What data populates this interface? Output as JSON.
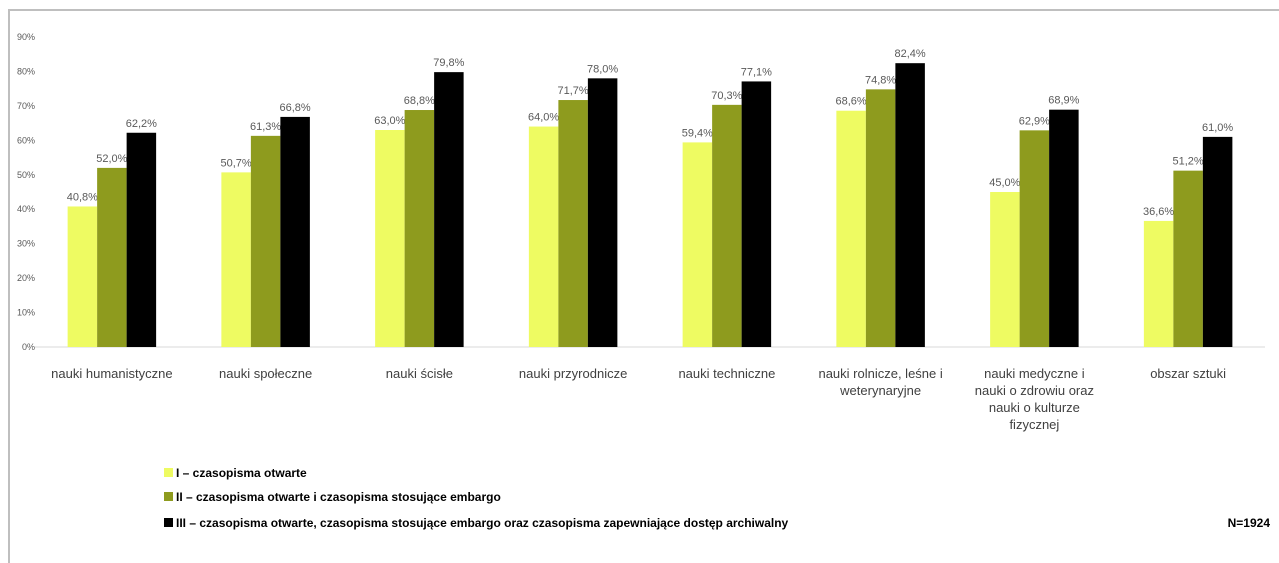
{
  "chart_data": {
    "type": "bar",
    "categories": [
      [
        "nauki humanistyczne"
      ],
      [
        "nauki społeczne"
      ],
      [
        "nauki ścisłe"
      ],
      [
        "nauki przyrodnicze"
      ],
      [
        "nauki techniczne"
      ],
      [
        "nauki rolnicze, leśne i",
        "weterynaryjne"
      ],
      [
        "nauki medyczne i",
        "nauki o zdrowiu oraz",
        "nauki o kulturze",
        "fizycznej"
      ],
      [
        "obszar sztuki"
      ]
    ],
    "series": [
      {
        "name": "I – czasopisma otwarte",
        "color": "#eefb62",
        "values": [
          40.8,
          50.7,
          63.0,
          64.0,
          59.4,
          68.6,
          45.0,
          36.6
        ],
        "labels": [
          "40,8%",
          "50,7%",
          "63,0%",
          "64,0%",
          "59,4%",
          "68,6%",
          "45,0%",
          "36,6%"
        ]
      },
      {
        "name": "II – czasopisma otwarte i czasopisma stosujące embargo",
        "color": "#8e9b1e",
        "values": [
          52.0,
          61.3,
          68.8,
          71.7,
          70.3,
          74.8,
          62.9,
          51.2
        ],
        "labels": [
          "52,0%",
          "61,3%",
          "68,8%",
          "71,7%",
          "70,3%",
          "74,8%",
          "62,9%",
          "51,2%"
        ]
      },
      {
        "name": "III – czasopisma otwarte, czasopisma stosujące embargo oraz czasopisma zapewniające dostęp archiwalny",
        "color": "#000000",
        "values": [
          62.2,
          66.8,
          79.8,
          78.0,
          77.1,
          82.4,
          68.9,
          61.0
        ],
        "labels": [
          "62,2%",
          "66,8%",
          "79,8%",
          "78,0%",
          "77,1%",
          "82,4%",
          "68,9%",
          "61,0%"
        ]
      }
    ],
    "yticks": [
      "0%",
      "10%",
      "20%",
      "30%",
      "40%",
      "50%",
      "60%",
      "70%",
      "80%",
      "90%"
    ],
    "ylim": [
      0,
      90
    ],
    "grid": false,
    "legend_position": "bottom-left",
    "note": "N=1924"
  }
}
